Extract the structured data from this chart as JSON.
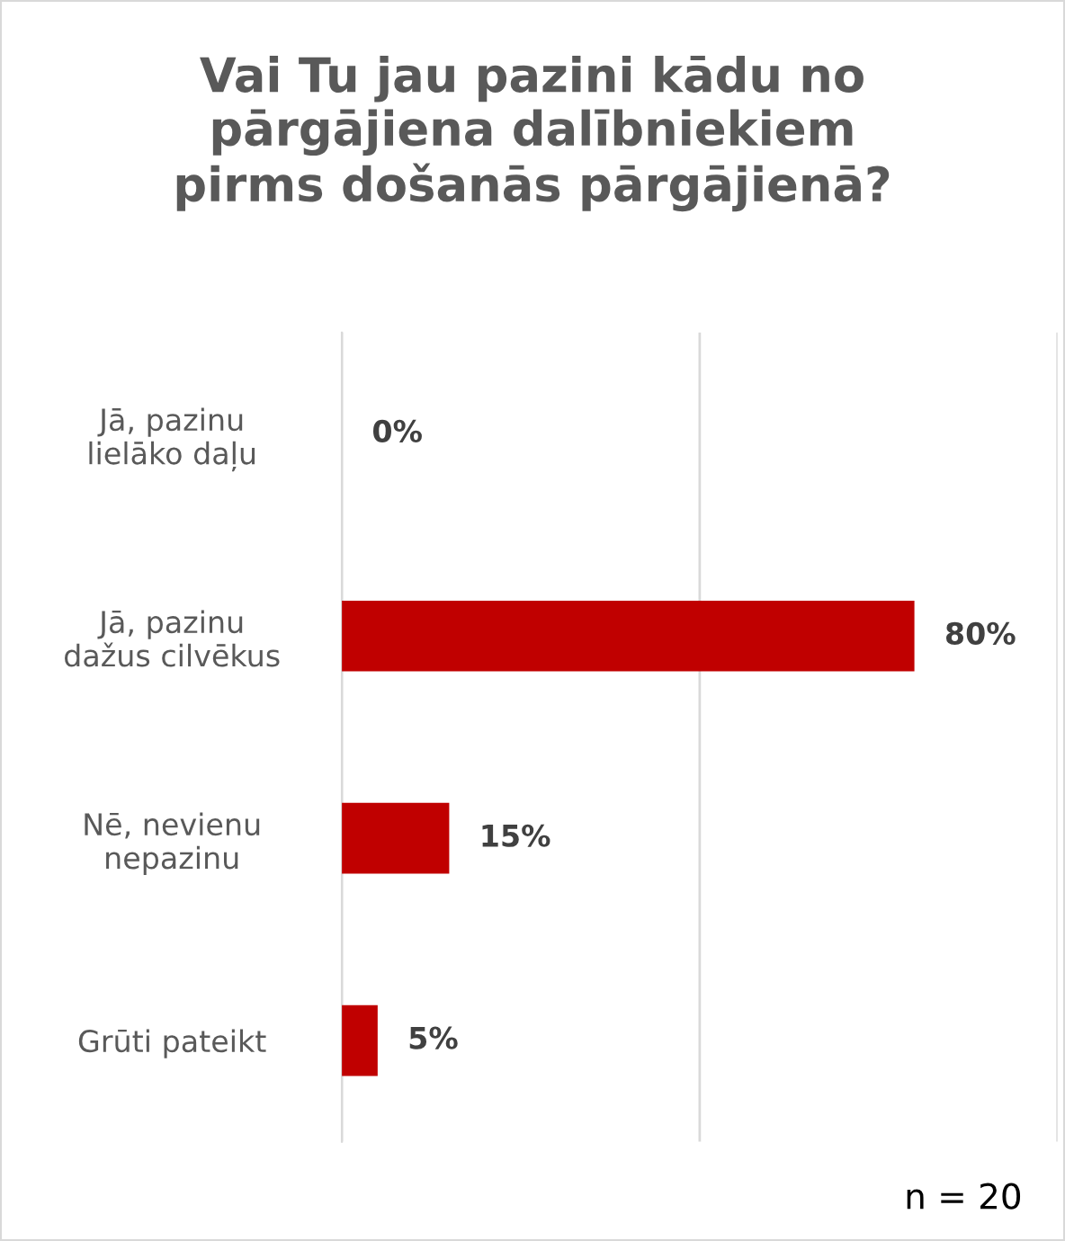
{
  "chart_data": {
    "type": "bar",
    "orientation": "horizontal",
    "title": "Vai Tu jau pazini kādu no\npārgājiena dalībniekiem\npirms došanās pārgājienā?",
    "categories": [
      "Jā, pazinu\nlielāko daļu",
      "Jā, pazinu\ndažus cilvēkus",
      "Nē, nevienu\nnepazinu",
      "Grūti pateikt"
    ],
    "values": [
      0,
      80,
      15,
      5
    ],
    "value_labels": [
      "0%",
      "80%",
      "15%",
      "5%"
    ],
    "color": "#c00000",
    "xlim": [
      0,
      100
    ],
    "xticks": [
      {
        "value": 0,
        "label": null
      },
      {
        "value": 50,
        "label": null
      },
      {
        "value": 100,
        "label": null
      }
    ],
    "grid": "x",
    "tick_labels": "y",
    "annotations": [
      "n = 20"
    ]
  }
}
